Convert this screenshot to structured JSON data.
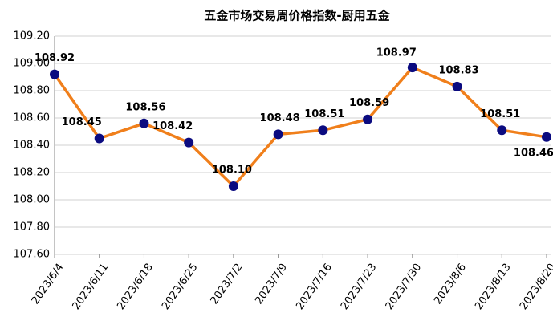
{
  "chart_data": {
    "type": "line",
    "title": "五金市场交易周价格指数-厨用五金",
    "categories": [
      "2023/6/4",
      "2023/6/11",
      "2023/6/18",
      "2023/6/25",
      "2023/7/2",
      "2023/7/9",
      "2023/7/16",
      "2023/7/23",
      "2023/7/30",
      "2023/8/6",
      "2023/8/13",
      "2023/8/20"
    ],
    "series": [
      {
        "color": "#f07f1b",
        "marker_color": "#0b0b80",
        "values": [
          108.92,
          108.45,
          108.56,
          108.42,
          108.1,
          108.48,
          108.51,
          108.59,
          108.97,
          108.83,
          108.51,
          108.46
        ],
        "value_labels": [
          "108.92",
          "108.45",
          "108.56",
          "108.42",
          "108.10",
          "108.48",
          "108.51",
          "108.59",
          "108.97",
          "108.83",
          "108.51",
          "108.46"
        ]
      }
    ],
    "ylim": [
      107.6,
      109.2
    ],
    "yticks": [
      {
        "value": 107.6,
        "label": "107.60"
      },
      {
        "value": 107.8,
        "label": "107.80"
      },
      {
        "value": 108.0,
        "label": "108.00"
      },
      {
        "value": 108.2,
        "label": "108.20"
      },
      {
        "value": 108.4,
        "label": "108.40"
      },
      {
        "value": 108.6,
        "label": "108.60"
      },
      {
        "value": 108.8,
        "label": "108.80"
      },
      {
        "value": 109.0,
        "label": "109.00"
      },
      {
        "value": 109.2,
        "label": "109.20"
      }
    ],
    "grid": true
  }
}
